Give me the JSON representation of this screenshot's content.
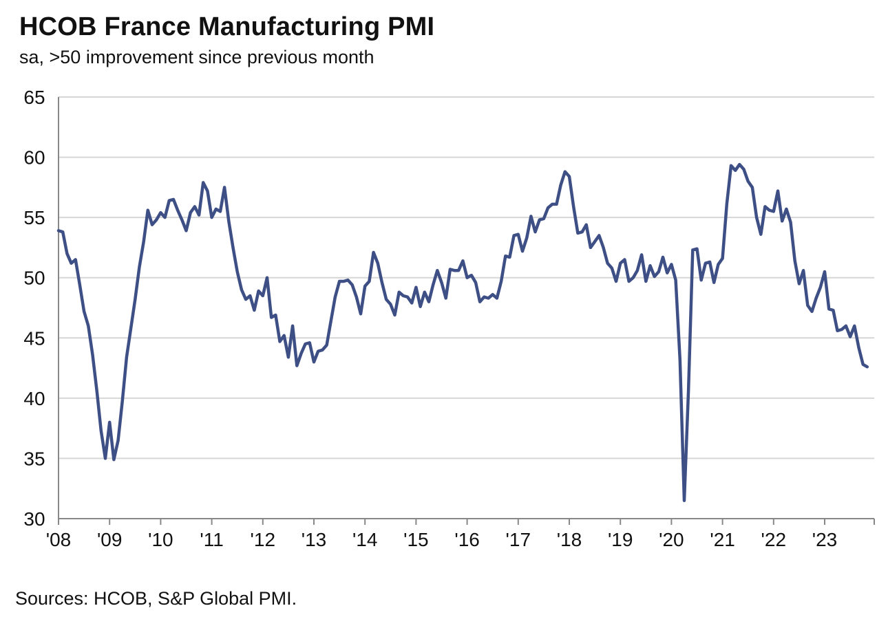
{
  "chart_data": {
    "type": "line",
    "title": "HCOB France Manufacturing PMI",
    "subtitle": "sa, >50 improvement since previous month",
    "source": "Sources: HCOB, S&P Global PMI.",
    "xlabel": "",
    "ylabel": "",
    "ylim": [
      30,
      65
    ],
    "yticks": [
      "65",
      "60",
      "55",
      "50",
      "45",
      "40",
      "35",
      "30"
    ],
    "xticks": [
      "'08",
      "'09",
      "'10",
      "'11",
      "'12",
      "'13",
      "'14",
      "'15",
      "'16",
      "'17",
      "'18",
      "'19",
      "'20",
      "'21",
      "'22",
      "'23"
    ],
    "grid": true,
    "line_color": "#3d4f85",
    "series": [
      {
        "name": "France Manufacturing PMI",
        "start": "2008-01",
        "frequency": "monthly",
        "values": [
          53.9,
          53.8,
          52.0,
          51.2,
          51.5,
          49.4,
          47.2,
          46.0,
          43.6,
          40.6,
          37.3,
          35.0,
          38.0,
          34.9,
          36.5,
          39.8,
          43.4,
          45.8,
          48.2,
          50.9,
          53.0,
          55.6,
          54.4,
          54.8,
          55.4,
          55.0,
          56.4,
          56.5,
          55.6,
          54.8,
          53.9,
          55.4,
          55.9,
          55.2,
          57.9,
          57.2,
          55.0,
          55.7,
          55.5,
          57.5,
          54.7,
          52.5,
          50.5,
          49.0,
          48.2,
          48.5,
          47.3,
          48.9,
          48.5,
          50.0,
          46.7,
          46.9,
          44.7,
          45.2,
          43.4,
          46.0,
          42.7,
          43.7,
          44.5,
          44.6,
          43.0,
          43.9,
          44.0,
          44.4,
          46.4,
          48.4,
          49.7,
          49.7,
          49.8,
          49.4,
          48.4,
          47.0,
          49.3,
          49.7,
          52.1,
          51.2,
          49.6,
          48.2,
          47.8,
          46.9,
          48.8,
          48.5,
          48.4,
          47.9,
          49.2,
          47.6,
          48.8,
          48.0,
          49.4,
          50.6,
          49.6,
          48.3,
          50.7,
          50.6,
          50.6,
          51.4,
          50.0,
          50.2,
          49.6,
          48.0,
          48.4,
          48.3,
          48.6,
          48.3,
          49.7,
          51.8,
          51.7,
          53.5,
          53.6,
          52.2,
          53.3,
          55.1,
          53.8,
          54.8,
          54.9,
          55.8,
          56.1,
          56.1,
          57.7,
          58.8,
          58.4,
          55.9,
          53.7,
          53.8,
          54.4,
          52.5,
          53.0,
          53.5,
          52.5,
          51.2,
          50.8,
          49.7,
          51.2,
          51.5,
          49.7,
          50.0,
          50.6,
          51.9,
          49.7,
          51.0,
          50.1,
          50.5,
          51.7,
          50.4,
          51.1,
          49.8,
          43.2,
          31.5,
          40.6,
          52.3,
          52.4,
          49.8,
          51.2,
          51.3,
          49.6,
          51.1,
          51.6,
          56.1,
          59.3,
          58.9,
          59.4,
          59.0,
          58.0,
          57.5,
          55.0,
          53.6,
          55.9,
          55.6,
          55.5,
          57.2,
          54.7,
          55.7,
          54.6,
          51.4,
          49.5,
          50.6,
          47.7,
          47.2,
          48.3,
          49.2,
          50.5,
          47.4,
          47.3,
          45.6,
          45.7,
          46.0,
          45.1,
          46.0,
          44.2,
          42.8,
          42.6
        ]
      }
    ]
  }
}
